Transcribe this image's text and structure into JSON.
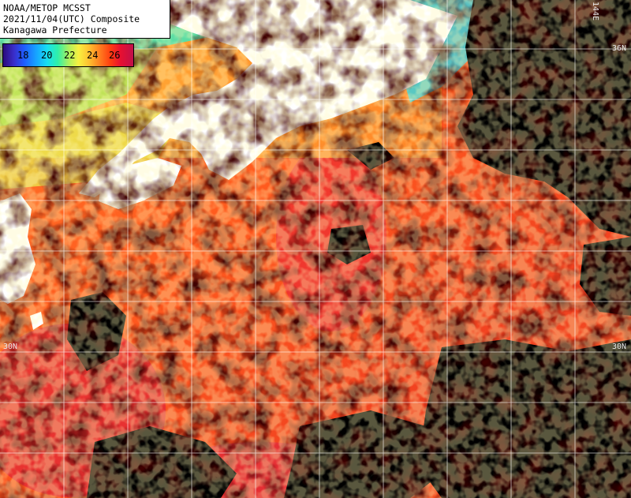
{
  "title": {
    "line1": "NOAA/METOP MCSST",
    "line2": "2021/11/04(UTC) Composite",
    "line3": "Kanagawa Prefecture"
  },
  "legend": {
    "labels": [
      "18",
      "20",
      "22",
      "24",
      "26"
    ],
    "colors": [
      "#2a0a7a",
      "#1f5cff",
      "#18e0f0",
      "#a8f060",
      "#f8f040",
      "#ff8020",
      "#e81030",
      "#c0104a"
    ]
  },
  "grid_labels": {
    "lat_30_left": "30N",
    "lat_30_right": "30N",
    "lat_36_right": "36N",
    "lon_144": "144E"
  },
  "colors": {
    "land": "#ffffff",
    "cloud": "#000000",
    "grid": "#ffffff",
    "sea_warm": "#ff5a1e",
    "sea_hot": "#e8203a",
    "sea_mid": "#ffa040",
    "sea_cool": "#f0e860",
    "sea_cold": "#40e8d0"
  }
}
